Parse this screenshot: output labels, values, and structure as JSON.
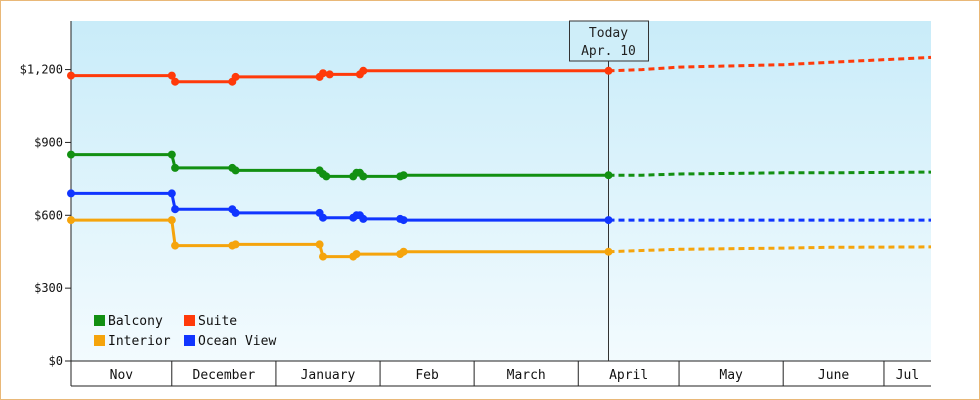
{
  "chart_data": {
    "type": "line",
    "title": "",
    "xlabel": "",
    "ylabel": "",
    "y_axis": {
      "min": 0,
      "max": 1400,
      "ticks": [
        {
          "value": 0,
          "label": "$0"
        },
        {
          "value": 300,
          "label": "$300"
        },
        {
          "value": 600,
          "label": "$600"
        },
        {
          "value": 900,
          "label": "$900"
        },
        {
          "value": 1200,
          "label": "$1,200"
        }
      ]
    },
    "x_axis": {
      "start": "2024-11-01",
      "end": "2025-07-15",
      "months": [
        "Nov",
        "December",
        "January",
        "Feb",
        "March",
        "April",
        "May",
        "June",
        "Jul"
      ],
      "month_starts": [
        "2024-11-01",
        "2024-12-01",
        "2025-01-01",
        "2025-02-01",
        "2025-03-01",
        "2025-04-01",
        "2025-05-01",
        "2025-06-01",
        "2025-07-01"
      ]
    },
    "today_marker": {
      "date": "2025-04-10",
      "line1": "Today",
      "line2": "Apr. 10"
    },
    "legend": {
      "placement": "bottom-left",
      "columns": 2
    },
    "grid": false,
    "background": "sky-gradient",
    "series": [
      {
        "name": "Balcony",
        "color": "#129012",
        "history": [
          [
            "2024-11-01",
            850
          ],
          [
            "2024-12-01",
            850
          ],
          [
            "2024-12-02",
            795
          ],
          [
            "2024-12-19",
            795
          ],
          [
            "2024-12-20",
            785
          ],
          [
            "2025-01-14",
            785
          ],
          [
            "2025-01-15",
            770
          ],
          [
            "2025-01-16",
            760
          ],
          [
            "2025-01-24",
            760
          ],
          [
            "2025-01-25",
            775
          ],
          [
            "2025-01-26",
            775
          ],
          [
            "2025-01-27",
            760
          ],
          [
            "2025-02-07",
            760
          ],
          [
            "2025-02-08",
            765
          ],
          [
            "2025-04-10",
            765
          ]
        ],
        "projection": [
          [
            "2025-04-10",
            765
          ],
          [
            "2025-04-20",
            765
          ],
          [
            "2025-05-01",
            770
          ],
          [
            "2025-06-01",
            775
          ],
          [
            "2025-06-15",
            775
          ],
          [
            "2025-07-15",
            778
          ]
        ]
      },
      {
        "name": "Suite",
        "color": "#ff3a0a",
        "history": [
          [
            "2024-11-01",
            1175
          ],
          [
            "2024-12-01",
            1175
          ],
          [
            "2024-12-02",
            1150
          ],
          [
            "2024-12-19",
            1150
          ],
          [
            "2024-12-20",
            1170
          ],
          [
            "2025-01-14",
            1170
          ],
          [
            "2025-01-15",
            1185
          ],
          [
            "2025-01-17",
            1180
          ],
          [
            "2025-01-26",
            1180
          ],
          [
            "2025-01-27",
            1195
          ],
          [
            "2025-04-10",
            1195
          ]
        ],
        "projection": [
          [
            "2025-04-10",
            1195
          ],
          [
            "2025-04-20",
            1200
          ],
          [
            "2025-05-01",
            1210
          ],
          [
            "2025-06-01",
            1220
          ],
          [
            "2025-06-15",
            1230
          ],
          [
            "2025-07-15",
            1250
          ]
        ]
      },
      {
        "name": "Interior",
        "color": "#f5a40c",
        "history": [
          [
            "2024-11-01",
            580
          ],
          [
            "2024-12-01",
            580
          ],
          [
            "2024-12-02",
            475
          ],
          [
            "2024-12-19",
            475
          ],
          [
            "2024-12-20",
            480
          ],
          [
            "2025-01-14",
            480
          ],
          [
            "2025-01-15",
            430
          ],
          [
            "2025-01-24",
            430
          ],
          [
            "2025-01-25",
            440
          ],
          [
            "2025-02-07",
            440
          ],
          [
            "2025-02-08",
            450
          ],
          [
            "2025-04-10",
            450
          ]
        ],
        "projection": [
          [
            "2025-04-10",
            450
          ],
          [
            "2025-04-20",
            455
          ],
          [
            "2025-05-01",
            460
          ],
          [
            "2025-06-01",
            465
          ],
          [
            "2025-06-15",
            468
          ],
          [
            "2025-07-15",
            470
          ]
        ]
      },
      {
        "name": "Ocean View",
        "color": "#1035ff",
        "history": [
          [
            "2024-11-01",
            690
          ],
          [
            "2024-12-01",
            690
          ],
          [
            "2024-12-02",
            625
          ],
          [
            "2024-12-19",
            625
          ],
          [
            "2024-12-20",
            610
          ],
          [
            "2025-01-14",
            610
          ],
          [
            "2025-01-15",
            590
          ],
          [
            "2025-01-24",
            590
          ],
          [
            "2025-01-25",
            600
          ],
          [
            "2025-01-26",
            600
          ],
          [
            "2025-01-27",
            585
          ],
          [
            "2025-02-07",
            585
          ],
          [
            "2025-02-08",
            580
          ],
          [
            "2025-04-10",
            580
          ]
        ],
        "projection": [
          [
            "2025-04-10",
            580
          ],
          [
            "2025-07-15",
            580
          ]
        ]
      }
    ],
    "markers": {
      "Balcony": [
        "2024-11-01",
        "2024-12-01",
        "2024-12-02",
        "2024-12-19",
        "2024-12-20",
        "2025-01-14",
        "2025-01-15",
        "2025-01-16",
        "2025-01-24",
        "2025-01-25",
        "2025-01-26",
        "2025-01-27",
        "2025-02-07",
        "2025-02-08",
        "2025-04-10"
      ],
      "Suite": [
        "2024-11-01",
        "2024-12-01",
        "2024-12-02",
        "2024-12-19",
        "2024-12-20",
        "2025-01-14",
        "2025-01-15",
        "2025-01-17",
        "2025-01-26",
        "2025-01-27",
        "2025-04-10"
      ],
      "Interior": [
        "2024-11-01",
        "2024-12-01",
        "2024-12-02",
        "2024-12-19",
        "2024-12-20",
        "2025-01-14",
        "2025-01-15",
        "2025-01-24",
        "2025-01-25",
        "2025-02-07",
        "2025-02-08",
        "2025-04-10"
      ],
      "Ocean View": [
        "2024-11-01",
        "2024-12-01",
        "2024-12-02",
        "2024-12-19",
        "2024-12-20",
        "2025-01-14",
        "2025-01-15",
        "2025-01-24",
        "2025-01-25",
        "2025-01-26",
        "2025-01-27",
        "2025-02-07",
        "2025-02-08",
        "2025-04-10"
      ]
    },
    "legend_order": [
      "Balcony",
      "Suite",
      "Interior",
      "Ocean View"
    ],
    "colors": {
      "frame": "#e9b878",
      "axis": "#222222",
      "sky_top": "#c9ecf9",
      "sky_bottom": "#f3fbfe"
    }
  }
}
